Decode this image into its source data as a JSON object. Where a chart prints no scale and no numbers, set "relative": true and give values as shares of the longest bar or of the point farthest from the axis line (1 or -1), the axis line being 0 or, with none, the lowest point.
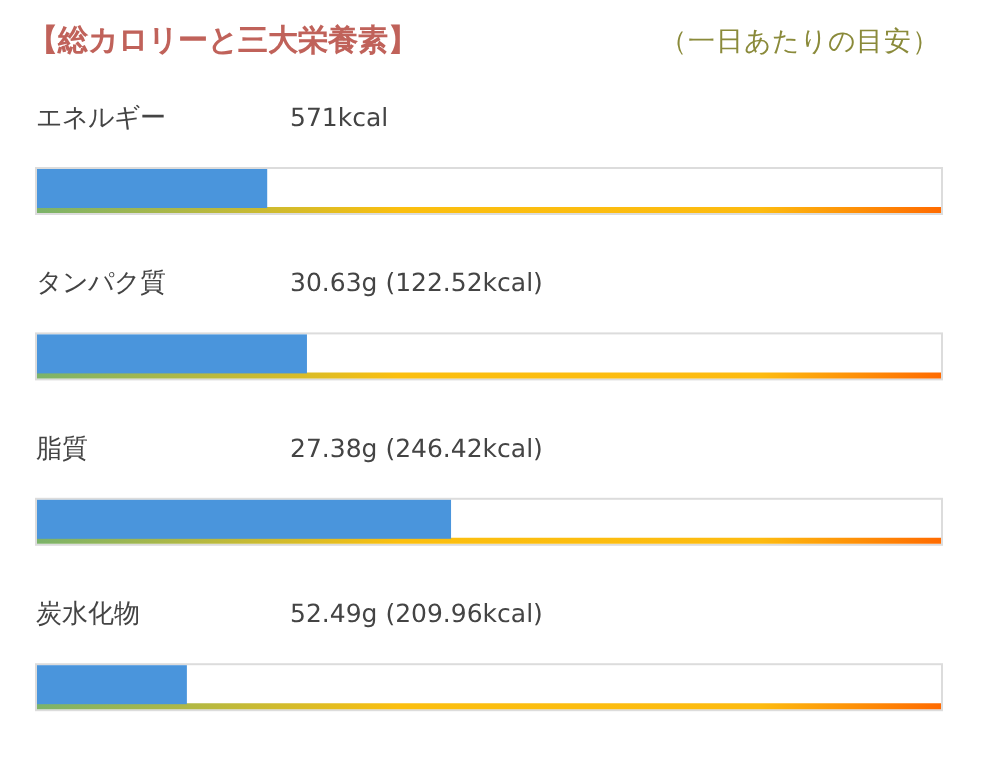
{
  "chart_data": {
    "type": "bar",
    "orientation": "horizontal",
    "relative": true,
    "title": "【総カロリーと三大栄養素】",
    "subtitle": "（一日あたりの目安）",
    "categories": [
      "エネルギー",
      "タンパク質",
      "脂質",
      "炭水化物"
    ],
    "values": [
      0.556,
      0.652,
      1,
      0.362
    ],
    "annotations": [
      "571kcal",
      "30.63g (122.52kcal)",
      "27.38g (246.42kcal)",
      "52.49g (209.96kcal)"
    ],
    "color": "#4a95dc"
  }
}
